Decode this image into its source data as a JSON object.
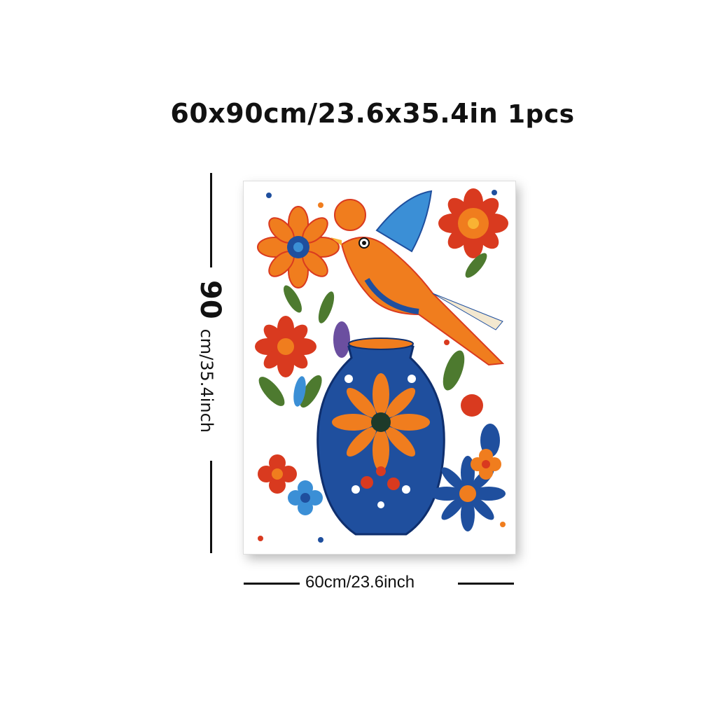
{
  "header": {
    "size_text": "60x90cm/23.6x35.4in",
    "quantity_text": "1pcs"
  },
  "dimensions": {
    "height_big": "90",
    "height_rest": "cm/35.4inch",
    "width_text": "60cm/23.6inch"
  },
  "artwork": {
    "subject": "folk-art bird and flower vase",
    "colors": [
      "#f07d1e",
      "#1f4f9e",
      "#d93a1f",
      "#3b8fd6",
      "#4d7a2f",
      "#ffffff"
    ]
  }
}
